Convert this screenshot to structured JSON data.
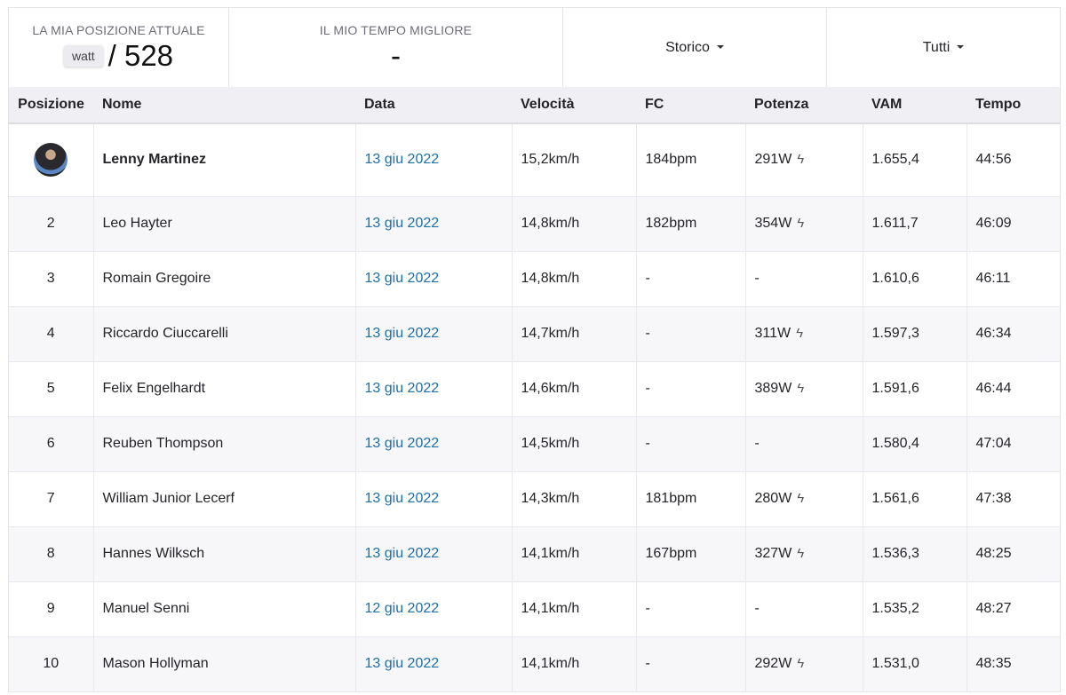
{
  "stats": {
    "position_label": "LA MIA POSIZIONE ATTUALE",
    "position_chip": "watt",
    "position_total": "/ 528",
    "best_time_label": "IL MIO TEMPO MIGLIORE",
    "best_time_value": "-",
    "filter_period": "Storico",
    "filter_group": "Tutti"
  },
  "columns": [
    "Posizione",
    "Nome",
    "Data",
    "Velocità",
    "FC",
    "Potenza",
    "VAM",
    "Tempo"
  ],
  "rows": [
    {
      "pos": "",
      "name": "Lenny Martinez",
      "date": "13 giu 2022",
      "speed": "15,2km/h",
      "hr": "184bpm",
      "power": "291W",
      "power_icon": true,
      "vam": "1.655,4",
      "time": "44:56"
    },
    {
      "pos": "2",
      "name": "Leo Hayter",
      "date": "13 giu 2022",
      "speed": "14,8km/h",
      "hr": "182bpm",
      "power": "354W",
      "power_icon": true,
      "vam": "1.611,7",
      "time": "46:09"
    },
    {
      "pos": "3",
      "name": "Romain Gregoire",
      "date": "13 giu 2022",
      "speed": "14,8km/h",
      "hr": "-",
      "power": "-",
      "power_icon": false,
      "vam": "1.610,6",
      "time": "46:11"
    },
    {
      "pos": "4",
      "name": "Riccardo Ciuccarelli",
      "date": "13 giu 2022",
      "speed": "14,7km/h",
      "hr": "-",
      "power": "311W",
      "power_icon": true,
      "vam": "1.597,3",
      "time": "46:34"
    },
    {
      "pos": "5",
      "name": "Felix Engelhardt",
      "date": "13 giu 2022",
      "speed": "14,6km/h",
      "hr": "-",
      "power": "389W",
      "power_icon": true,
      "vam": "1.591,6",
      "time": "46:44"
    },
    {
      "pos": "6",
      "name": "Reuben Thompson",
      "date": "13 giu 2022",
      "speed": "14,5km/h",
      "hr": "-",
      "power": "-",
      "power_icon": false,
      "vam": "1.580,4",
      "time": "47:04"
    },
    {
      "pos": "7",
      "name": "William Junior Lecerf",
      "date": "13 giu 2022",
      "speed": "14,3km/h",
      "hr": "181bpm",
      "power": "280W",
      "power_icon": true,
      "vam": "1.561,6",
      "time": "47:38"
    },
    {
      "pos": "8",
      "name": "Hannes Wilksch",
      "date": "13 giu 2022",
      "speed": "14,1km/h",
      "hr": "167bpm",
      "power": "327W",
      "power_icon": true,
      "vam": "1.536,3",
      "time": "48:25"
    },
    {
      "pos": "9",
      "name": "Manuel Senni",
      "date": "12 giu 2022",
      "speed": "14,1km/h",
      "hr": "-",
      "power": "-",
      "power_icon": false,
      "vam": "1.535,2",
      "time": "48:27"
    },
    {
      "pos": "10",
      "name": "Mason Hollyman",
      "date": "13 giu 2022",
      "speed": "14,1km/h",
      "hr": "-",
      "power": "292W",
      "power_icon": true,
      "vam": "1.531,0",
      "time": "48:35"
    }
  ]
}
